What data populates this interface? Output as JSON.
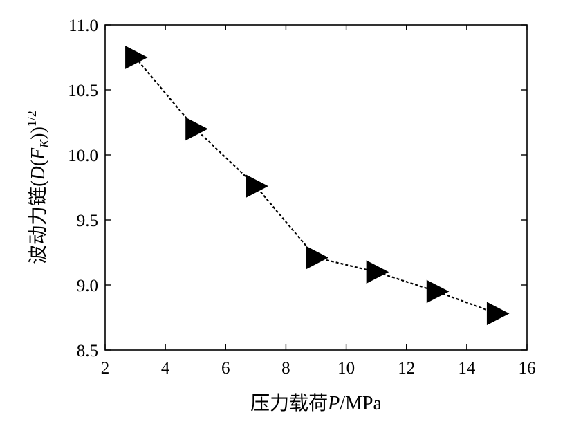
{
  "chart_data": {
    "type": "line",
    "title": "",
    "xlabel": "压力载荷P/MPa",
    "xlabel_parts": {
      "prefix": "压力载荷",
      "var": "P",
      "suffix": "/MPa"
    },
    "ylabel": "波动力链(D(F_K))^1/2",
    "ylabel_parts": {
      "prefix": "波动力链(",
      "d": "D",
      "open": "(",
      "f": "F",
      "sub": "K",
      "close": "))",
      "sup": "1/2"
    },
    "xlim": [
      2,
      16
    ],
    "ylim": [
      8.5,
      11.0
    ],
    "xticks": [
      2,
      4,
      6,
      8,
      10,
      12,
      14,
      16
    ],
    "xtick_labels": [
      "2",
      "4",
      "6",
      "8",
      "10",
      "12",
      "14",
      "16"
    ],
    "yticks": [
      8.5,
      9.0,
      9.5,
      10.0,
      10.5,
      11.0
    ],
    "ytick_labels": [
      "8.5",
      "9.0",
      "9.5",
      "10.0",
      "10.5",
      "11.0"
    ],
    "grid": false,
    "legend": "none",
    "series": [
      {
        "x": [
          3,
          5,
          7,
          9,
          11,
          13,
          15
        ],
        "y": [
          10.75,
          10.2,
          9.76,
          9.21,
          9.1,
          8.95,
          8.78
        ],
        "marker": "right-triangle",
        "line_style": "dotted",
        "color": "#000000"
      }
    ]
  }
}
